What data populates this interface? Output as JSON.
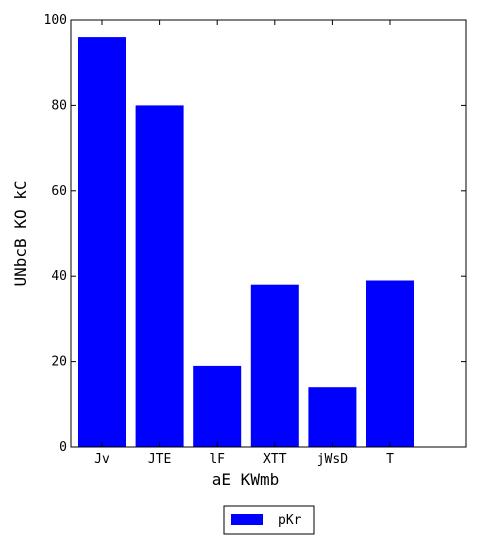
{
  "chart_data": {
    "type": "bar",
    "categories": [
      "Jv",
      "JTE",
      "lF",
      "XTT",
      "jWsD",
      "T"
    ],
    "series": [
      {
        "name": "pKr",
        "values": [
          96,
          80,
          19,
          38,
          14,
          39
        ],
        "color": "#0000ff"
      }
    ],
    "xlabel": "aE KWmb",
    "ylabel": "UNbcB KO kC",
    "ylim": [
      0,
      100
    ],
    "yticks": [
      0,
      20,
      40,
      60,
      80,
      100
    ],
    "grid": false,
    "legend_position": "bottom-center"
  }
}
